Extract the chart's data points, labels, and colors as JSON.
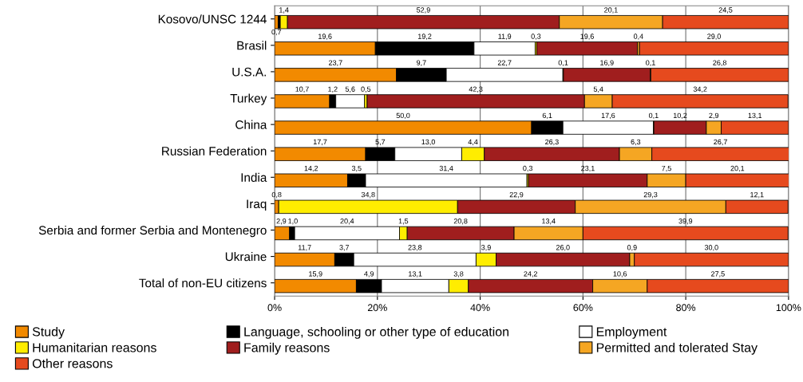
{
  "chart_data": {
    "type": "bar",
    "orientation": "horizontal",
    "stacked": true,
    "categories": [
      "Kosovo/UNSC 1244",
      "Brasil",
      "U.S.A.",
      "Turkey",
      "China",
      "Russian Federation",
      "India",
      "Iraq",
      "Serbia and former Serbia and Montenegro",
      "Ukraine",
      "Total of non-EU citizens"
    ],
    "series": [
      {
        "name": "Study",
        "color": "#f28a00",
        "values": [
          0.7,
          19.6,
          23.7,
          10.7,
          50.0,
          17.7,
          14.2,
          0.8,
          2.9,
          11.7,
          15.9
        ],
        "value_labels": [
          "0,7",
          "19,6",
          "23,7",
          "10,7",
          "50,0",
          "17,7",
          "14,2",
          "0,8",
          "2,9",
          "11,7",
          "15,9"
        ]
      },
      {
        "name": "Language, schooling or other type of education",
        "color": "#000000",
        "values": [
          0.4,
          19.2,
          9.7,
          1.2,
          6.1,
          5.7,
          3.5,
          null,
          1.0,
          3.7,
          4.9
        ],
        "value_labels": [
          null,
          "19,2",
          "9,7",
          "1,2",
          "6,1",
          "5,7",
          "3,5",
          null,
          "1,0",
          "3,7",
          "4,9"
        ]
      },
      {
        "name": "Employment",
        "color": "#ffffff",
        "values": [
          null,
          11.9,
          22.7,
          5.6,
          17.6,
          13.0,
          31.4,
          null,
          20.4,
          23.8,
          13.1
        ],
        "value_labels": [
          null,
          "11,9",
          "22,7",
          "5,6",
          "17,6",
          "13,0",
          "31,4",
          null,
          "20,4",
          "23,8",
          "13,1"
        ]
      },
      {
        "name": "Humanitarian reasons",
        "color": "#ffed00",
        "values": [
          1.4,
          0.3,
          0.1,
          0.5,
          0.1,
          4.4,
          0.3,
          34.8,
          1.5,
          3.9,
          3.8
        ],
        "value_labels": [
          "1,4",
          "0,3",
          "0,1",
          "0,5",
          "0,1",
          "4,4",
          "0,3",
          "34,8",
          "1,5",
          "3,9",
          "3,8"
        ]
      },
      {
        "name": "Family reasons",
        "color": "#a01e1e",
        "values": [
          52.9,
          19.6,
          16.9,
          42.3,
          10.2,
          26.3,
          23.1,
          22.9,
          20.8,
          26.0,
          24.2
        ],
        "value_labels": [
          "52,9",
          "19,6",
          "16,9",
          "42,3",
          "10,2",
          "26,3",
          "23,1",
          "22,9",
          "20,8",
          "26,0",
          "24,2"
        ]
      },
      {
        "name": "Permitted and tolerated Stay",
        "color": "#f5a623",
        "values": [
          20.1,
          0.4,
          0.1,
          5.4,
          2.9,
          6.3,
          7.5,
          29.3,
          13.4,
          0.9,
          10.6
        ],
        "value_labels": [
          "20,1",
          "0,4",
          "0,1",
          "5,4",
          "2,9",
          "6,3",
          "7,5",
          "29,3",
          "13,4",
          "0,9",
          "10,6"
        ]
      },
      {
        "name": "Other reasons",
        "color": "#e64a1e",
        "values": [
          24.5,
          29.0,
          26.8,
          34.2,
          13.1,
          26.7,
          20.1,
          12.1,
          39.9,
          30.0,
          27.5
        ],
        "value_labels": [
          "24,5",
          "29,0",
          "26,8",
          "34,2",
          "13,1",
          "26,7",
          "20,1",
          "12,1",
          "39,9",
          "30,0",
          "27,5"
        ]
      }
    ],
    "xlim": [
      0,
      100
    ],
    "xticks": [
      {
        "value": 0,
        "label": "0%"
      },
      {
        "value": 20,
        "label": "20%"
      },
      {
        "value": 40,
        "label": "40%"
      },
      {
        "value": 60,
        "label": "60%"
      },
      {
        "value": 80,
        "label": "80%"
      },
      {
        "value": 100,
        "label": "100%"
      }
    ],
    "grid": "x",
    "legend": "bottom"
  }
}
